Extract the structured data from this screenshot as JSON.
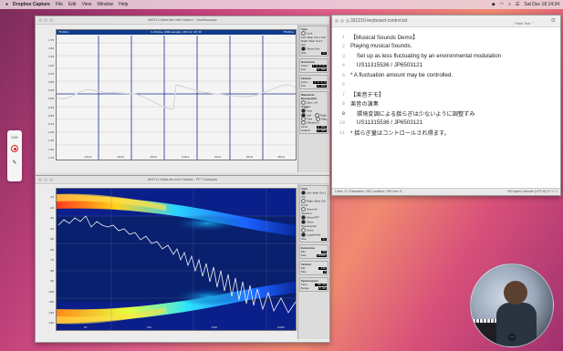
{
  "menubar": {
    "app": "Dropbox Capture",
    "items": [
      "File",
      "Edit",
      "View",
      "Window",
      "Help"
    ],
    "clock": "Sat Dec 18  14:34"
  },
  "oscilloscope": {
    "title": "MGTU UltraLite-mk3 Hybrid - Oscilloscope",
    "header_left": "75.00ms",
    "header_mid": "In 26.9ms, 4096 samples, 48.0 Hz, S/f: 30",
    "header_right": "75.00ms",
    "y_labels": [
      "1.75",
      "1.50",
      "1.25",
      "1.00",
      "0.75",
      "0.50",
      "0.25",
      "0.00",
      "-0.25",
      "-0.50",
      "-0.75",
      "-1.00",
      "-1.25",
      "-1.50",
      "-1.75"
    ],
    "x_labels": [
      "-10ms",
      "-20ms",
      "-10ms",
      "0.0ms",
      "10ms",
      "20ms",
      "30ms"
    ],
    "controls": {
      "view": {
        "title": "View",
        "items": [
          "Lock",
          "Left: Main Out 1 Out",
          "Right: Main Out 2 Out"
        ],
        "show_grid": "Show Grid",
        "size_label": "Size",
        "size_value": "2x"
      },
      "horizontal": {
        "title": "Horizontal",
        "zoom_label": "Zoom",
        "zoom_value": "1.0 0.0s",
        "pos_label": "Pos",
        "pos_value": "0.000"
      },
      "vertical": {
        "title": "Vertical",
        "zoom_label": "Zoom",
        "zoom_value": "1.0 0.0",
        "pos_label": "Pos",
        "pos_value": "0.000"
      },
      "waveform": {
        "title": "Waveform Recognition",
        "sync": "Sync: off",
        "trigger_title": "Trigger",
        "trigger_items": [
          "Auto",
          "Left",
          "Right",
          "Free",
          "Mag",
          "Waveform"
        ],
        "level_label": "Level",
        "level_value": "0.000",
        "holdoff_label": "Holdoff",
        "holdoff_value": "0.000"
      }
    }
  },
  "fft": {
    "title": "MGTU UltraLite-mk3 Hybrid - FFT Analysis",
    "y_labels": [
      "-10",
      "-20",
      "-30",
      "-40",
      "-50",
      "-60",
      "-70",
      "-80",
      "-90",
      "-100",
      "-110",
      "-120",
      "-130"
    ],
    "x_labels": [
      "50",
      "100",
      "1000",
      "10000"
    ],
    "controls": {
      "view": {
        "title": "View",
        "items": [
          "Left: Main Out 1 Out",
          "Right: Main Out 2 Out",
          "Show All Sections",
          "Show FFT",
          "Show Spectrogram",
          "Show",
          "Logarithmic"
        ],
        "size_label": "Size",
        "size_value": "2x"
      },
      "horizontal": {
        "title": "Horizontal",
        "min_label": "Min",
        "min_value": "20",
        "max_label": "Max",
        "max_value": "20000"
      },
      "vertical": {
        "title": "Vertical",
        "min_label": "Min",
        "min_value": "-130",
        "max_label": "Max",
        "max_value": "0"
      },
      "spectrogram": {
        "title": "Spectrogram",
        "floor_label": "Floor",
        "floor_value": "-80.00",
        "range_label": "Range",
        "range_value": "0.00"
      }
    }
  },
  "editor": {
    "title": "331210-keyboard-control.txt",
    "mode": "Plain Text",
    "lines": [
      "【Musical Sounds Demo】",
      "Playing musical Sounds.",
      "    Set up as less fluctuating by an environmental modulation",
      "    US11315536 / JP6503121",
      "* A fluctuation amount may be controlled.",
      "",
      "【楽音デモ】",
      "楽音の演奏",
      "    環境変調による揺らぎは少ないように調整ずみ",
      "    US11315536 / JP6503121",
      "* 揺らぎ量はコントロールされ得ます。"
    ],
    "status_left": "Lines: 11   Characters: 282   Location: 198   Line: 8",
    "status_right": "304 bytes   Unicode (UTF-8)   LF   1 / 1"
  },
  "side_tools": {
    "timer": "0:26"
  }
}
